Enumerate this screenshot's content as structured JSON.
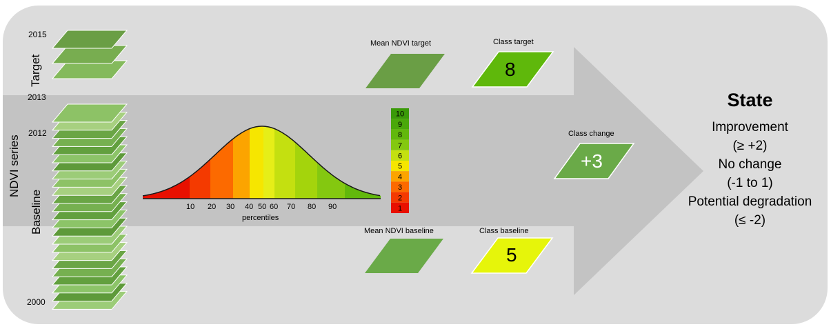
{
  "diagram": {
    "years": {
      "y2015": "2015",
      "y2013": "2013",
      "y2012": "2012",
      "y2000": "2000"
    },
    "side_labels": {
      "target": "Target",
      "ndvi_series": "NDVI series",
      "baseline": "Baseline"
    },
    "percentile_axis": {
      "ticks": [
        "10",
        "20",
        "30",
        "40",
        "50",
        "60",
        "70",
        "80",
        "90"
      ],
      "label": "percentiles"
    },
    "class_scale": [
      {
        "label": "10",
        "color": "#3a9a08"
      },
      {
        "label": "9",
        "color": "#4aa80a"
      },
      {
        "label": "8",
        "color": "#62b80c"
      },
      {
        "label": "7",
        "color": "#84c810"
      },
      {
        "label": "6",
        "color": "#c4e010"
      },
      {
        "label": "5",
        "color": "#f6e600"
      },
      {
        "label": "4",
        "color": "#fca400"
      },
      {
        "label": "3",
        "color": "#fc6a00"
      },
      {
        "label": "2",
        "color": "#f43a00"
      },
      {
        "label": "1",
        "color": "#e81000"
      }
    ],
    "mean_ndvi_target": "Mean NDVI target",
    "class_target": {
      "title": "Class target",
      "value": "8",
      "color": "#5fb80b"
    },
    "mean_ndvi_baseline": "Mean NDVI baseline",
    "class_baseline": {
      "title": "Class baseline",
      "value": "5",
      "color": "#e6f50a"
    },
    "class_change": {
      "title": "Class change",
      "value": "+3",
      "color": "#6aaa48"
    },
    "state": {
      "title": "State",
      "lines": [
        "Improvement",
        "(≥ +2)",
        "No change",
        "(-1 to 1)",
        "Potential degradation",
        "(≤ -2)"
      ]
    },
    "colors": {
      "background_panel": "#dcdcdc",
      "arrow": "#c3c3c3",
      "layer_dark": "#6a9e45",
      "layer_light": "#8dc266"
    }
  }
}
